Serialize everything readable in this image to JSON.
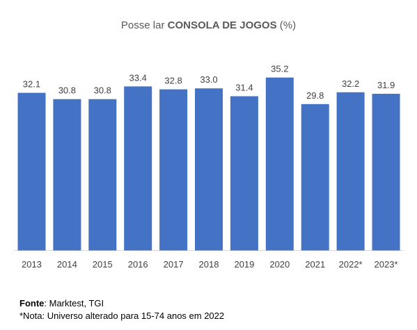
{
  "chart_data": {
    "type": "bar",
    "title": {
      "prefix": "Posse lar ",
      "emphasis": "CONSOLA DE JOGOS",
      "suffix": " (%)"
    },
    "categories": [
      "2013",
      "2014",
      "2015",
      "2016",
      "2017",
      "2018",
      "2019",
      "2020",
      "2021",
      "2022*",
      "2023*"
    ],
    "values": [
      32.1,
      30.8,
      30.8,
      33.4,
      32.8,
      33.0,
      31.4,
      35.2,
      29.8,
      32.2,
      31.9
    ],
    "data_labels": [
      "32.1",
      "30.8",
      "30.8",
      "33.4",
      "32.8",
      "33.0",
      "31.4",
      "35.2",
      "29.8",
      "32.2",
      "31.9"
    ],
    "ylim": [
      0,
      40
    ],
    "grid": false,
    "legend": "none",
    "colors": {
      "bar": "#4472C4",
      "label": "#404040",
      "baseline": "#D9D9D9"
    }
  },
  "footer": {
    "source_label": "Fonte",
    "source_text": ": Marktest, TGI",
    "note": "*Nota: Universo alterado para 15-74 anos em 2022"
  }
}
